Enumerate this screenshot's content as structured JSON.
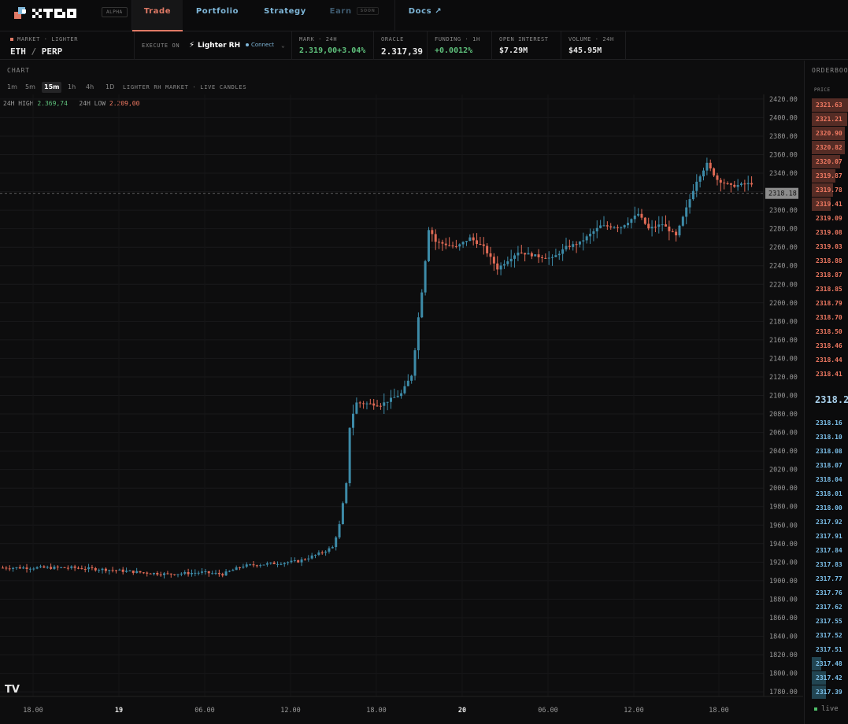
{
  "nav": {
    "alpha": "ALPHA",
    "tabs": [
      {
        "label": "Trade"
      },
      {
        "label": "Portfolio"
      },
      {
        "label": "Strategy"
      },
      {
        "label": "Earn",
        "badge": "SOON"
      },
      {
        "label": "Docs ↗"
      }
    ]
  },
  "market": {
    "sublabel": "MARKET · LIGHTER",
    "pair_base": "ETH",
    "pair_sep": "/",
    "pair_quote": "PERP",
    "execute_label": "EXECUTE ON",
    "venue": "Lighter RH",
    "connect": "Connect",
    "stats": [
      {
        "label": "MARK · 24H",
        "value": "2.319,00",
        "change": "+3.04%"
      },
      {
        "label": "ORACLE",
        "value": "2.317,39"
      },
      {
        "label": "FUNDING · 1H",
        "value": "+0.0012%"
      },
      {
        "label": "OPEN INTEREST",
        "value": "$7.29M"
      },
      {
        "label": "VOLUME · 24H",
        "value": "$45.95M"
      }
    ]
  },
  "chart": {
    "title": "CHART",
    "timeframes": [
      "1m",
      "5m",
      "15m",
      "1h",
      "4h",
      "1D"
    ],
    "selected_timeframe": "15m",
    "market_label": "LIGHTER RH MARKET · LIVE CANDLES",
    "high_label": "24H HIGH",
    "high_value": "2.369,74",
    "low_label": "24H LOW",
    "low_value": "2.209,00",
    "current_price_tag": "2318.18",
    "colors": {
      "up": "#3d8ba8",
      "down": "#e06a55"
    }
  },
  "chart_data": {
    "type": "candlestick",
    "ylim": [
      1775,
      2425
    ],
    "y_ticks": [
      "2420.00",
      "2400.00",
      "2380.00",
      "2360.00",
      "2340.00",
      "2320.00",
      "2300.00",
      "2280.00",
      "2260.00",
      "2240.00",
      "2220.00",
      "2200.00",
      "2180.00",
      "2160.00",
      "2140.00",
      "2120.00",
      "2100.00",
      "2080.00",
      "2060.00",
      "2040.00",
      "2020.00",
      "2000.00",
      "1980.00",
      "1960.00",
      "1940.00",
      "1920.00",
      "1900.00",
      "1880.00",
      "1860.00",
      "1840.00",
      "1820.00",
      "1800.00",
      "1780.00"
    ],
    "x_ticks": [
      "18.00",
      "19",
      "06.00",
      "12.00",
      "18.00",
      "20",
      "06.00",
      "12.00",
      "18.00"
    ],
    "anchors": [
      [
        0,
        1914
      ],
      [
        20,
        1914
      ],
      [
        30,
        1912
      ],
      [
        40,
        1909
      ],
      [
        48,
        1907
      ],
      [
        58,
        1909
      ],
      [
        64,
        1907
      ],
      [
        70,
        1916
      ],
      [
        80,
        1919
      ],
      [
        86,
        1921
      ],
      [
        92,
        1929
      ],
      [
        96,
        1936
      ],
      [
        98,
        1960
      ],
      [
        100,
        2003
      ],
      [
        101,
        2070
      ],
      [
        103,
        2092
      ],
      [
        110,
        2090
      ],
      [
        116,
        2102
      ],
      [
        119,
        2122
      ],
      [
        122,
        2215
      ],
      [
        124,
        2283
      ],
      [
        126,
        2266
      ],
      [
        132,
        2260
      ],
      [
        136,
        2270
      ],
      [
        140,
        2260
      ],
      [
        144,
        2237
      ],
      [
        150,
        2255
      ],
      [
        156,
        2250
      ],
      [
        160,
        2248
      ],
      [
        164,
        2260
      ],
      [
        168,
        2265
      ],
      [
        174,
        2283
      ],
      [
        180,
        2282
      ],
      [
        185,
        2296
      ],
      [
        188,
        2280
      ],
      [
        192,
        2285
      ],
      [
        196,
        2272
      ],
      [
        199,
        2302
      ],
      [
        202,
        2332
      ],
      [
        205,
        2350
      ],
      [
        208,
        2333
      ],
      [
        212,
        2326
      ],
      [
        218,
        2329
      ]
    ],
    "current": 2318.18
  },
  "orderbook": {
    "title": "ORDERBOOK",
    "price_header": "PRICE",
    "mid": "2318.2",
    "asks": [
      "2321.63",
      "2321.21",
      "2320.90",
      "2320.82",
      "2320.07",
      "2319.87",
      "2319.78",
      "2319.41",
      "2319.09",
      "2319.08",
      "2319.03",
      "2318.88",
      "2318.87",
      "2318.85",
      "2318.79",
      "2318.70",
      "2318.50",
      "2318.46",
      "2318.44",
      "2318.41"
    ],
    "bids": [
      "2318.16",
      "2318.10",
      "2318.08",
      "2318.07",
      "2318.04",
      "2318.01",
      "2318.00",
      "2317.92",
      "2317.91",
      "2317.84",
      "2317.83",
      "2317.77",
      "2317.76",
      "2317.62",
      "2317.55",
      "2317.52",
      "2317.51",
      "2317.48",
      "2317.42",
      "2317.39"
    ],
    "ask_depth": [
      0.9,
      0.75,
      0.7,
      0.7,
      0.6,
      0.5,
      0.45,
      0.4,
      0,
      0,
      0,
      0,
      0,
      0,
      0,
      0,
      0,
      0,
      0,
      0
    ],
    "bid_depth": [
      0,
      0,
      0,
      0,
      0,
      0,
      0,
      0,
      0,
      0,
      0,
      0,
      0,
      0,
      0,
      0,
      0,
      0.2,
      0.3,
      0.3
    ],
    "live_label": "live"
  }
}
